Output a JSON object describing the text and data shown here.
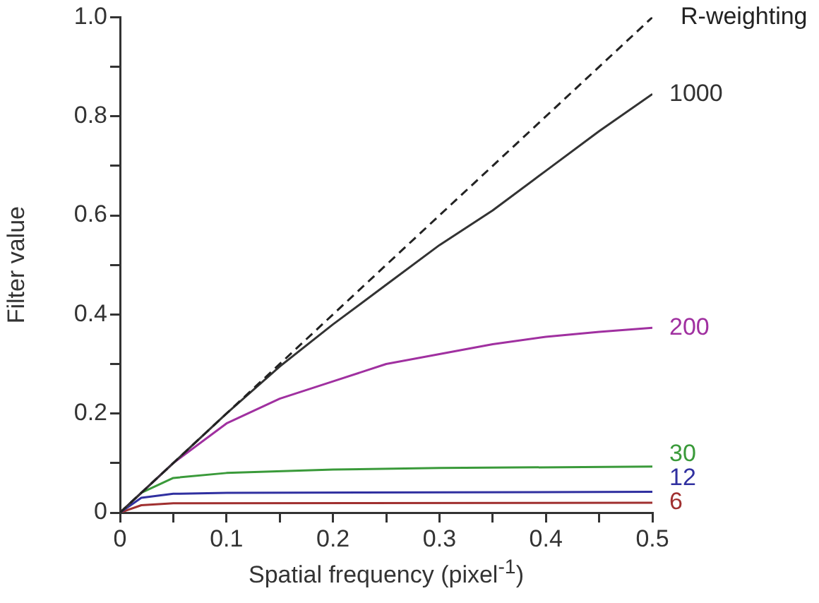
{
  "chart_data": {
    "type": "line",
    "xlabel": "Spatial frequency (pixel$^{-1}$)",
    "ylabel": "Filter value",
    "xlim": [
      0,
      0.5
    ],
    "ylim": [
      0,
      1.0
    ],
    "xticks": [
      0,
      {
        "value": 0.05,
        "label": null
      },
      0.1,
      {
        "value": 0.15,
        "label": null
      },
      0.2,
      {
        "value": 0.25,
        "label": null
      },
      0.3,
      {
        "value": 0.35,
        "label": null
      },
      0.4,
      {
        "value": 0.45,
        "label": null
      },
      0.5
    ],
    "yticks": [
      0,
      {
        "value": 0.1,
        "label": null
      },
      0.2,
      {
        "value": 0.3,
        "label": null
      },
      0.4,
      {
        "value": 0.5,
        "label": null
      },
      0.6,
      {
        "value": 0.7,
        "label": null
      },
      0.8,
      {
        "value": 0.9,
        "label": null
      },
      {
        "value": 1.0,
        "label": "1.0"
      }
    ],
    "grid": false,
    "legend": false,
    "marker": "none",
    "series": [
      {
        "name": "R-weighting",
        "color": "#222222",
        "line_style": "dashed",
        "x": [
          0,
          0.5
        ],
        "values": [
          0,
          1.0
        ]
      },
      {
        "name": "1000",
        "color": "#333333",
        "x": [
          0,
          0.05,
          0.1,
          0.15,
          0.2,
          0.25,
          0.3,
          0.35,
          0.4,
          0.45,
          0.5
        ],
        "values": [
          0,
          0.1,
          0.2,
          0.295,
          0.38,
          0.46,
          0.54,
          0.61,
          0.69,
          0.77,
          0.845
        ]
      },
      {
        "name": "200",
        "color": "#a030a0",
        "x": [
          0,
          0.05,
          0.1,
          0.15,
          0.2,
          0.25,
          0.3,
          0.35,
          0.4,
          0.45,
          0.5
        ],
        "values": [
          0,
          0.1,
          0.18,
          0.23,
          0.265,
          0.3,
          0.32,
          0.34,
          0.355,
          0.365,
          0.373
        ]
      },
      {
        "name": "30",
        "color": "#3a9a3a",
        "x": [
          0,
          0.02,
          0.05,
          0.1,
          0.2,
          0.3,
          0.5
        ],
        "values": [
          0,
          0.04,
          0.07,
          0.08,
          0.087,
          0.09,
          0.093
        ]
      },
      {
        "name": "12",
        "color": "#3030a0",
        "x": [
          0,
          0.02,
          0.05,
          0.1,
          0.5
        ],
        "values": [
          0,
          0.03,
          0.038,
          0.04,
          0.042
        ]
      },
      {
        "name": "6",
        "color": "#a03030",
        "x": [
          0,
          0.02,
          0.05,
          0.5
        ],
        "values": [
          0,
          0.015,
          0.019,
          0.02
        ]
      }
    ]
  }
}
